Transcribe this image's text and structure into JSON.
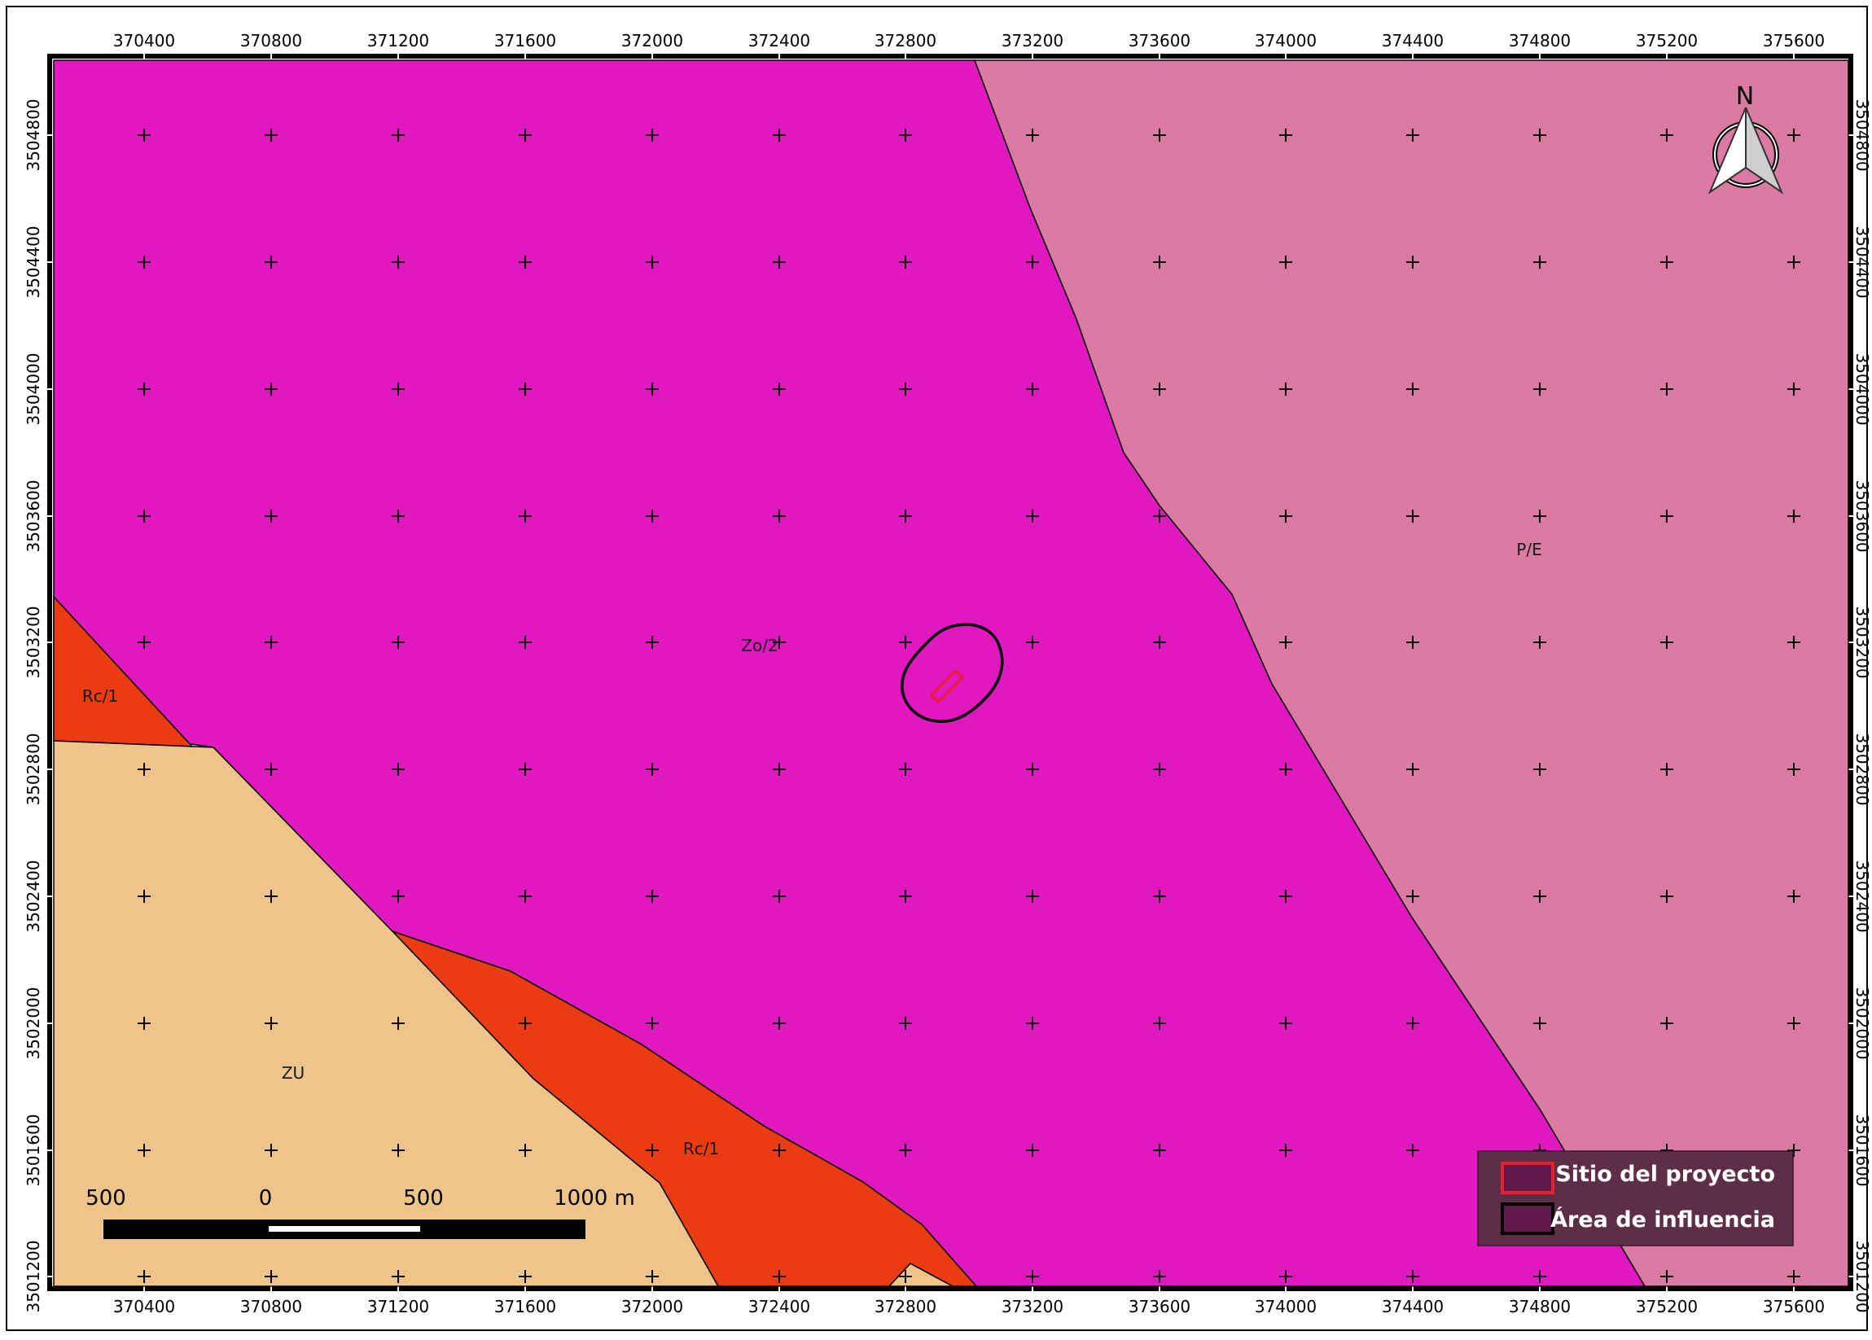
{
  "map": {
    "zone_labels": {
      "zo2": "Zo/2",
      "pe": "P/E",
      "rc1_west": "Rc/1",
      "rc1_south": "Rc/1",
      "zu": "ZU"
    },
    "grid_x_labels": [
      "370400",
      "370800",
      "371200",
      "371600",
      "372000",
      "372400",
      "372800",
      "373200",
      "373600",
      "374000",
      "374400",
      "374800",
      "375200",
      "375600"
    ],
    "grid_y_labels": [
      "3504800",
      "3504400",
      "3504000",
      "3503600",
      "3503200",
      "3502800",
      "3502400",
      "3502000",
      "3501600",
      "3501200"
    ],
    "north_arrow_label": "N",
    "scale_bar": {
      "labels": [
        "500",
        "0",
        "500",
        "1000 m"
      ]
    },
    "legend": {
      "items": [
        {
          "label": "Sitio del proyecto"
        },
        {
          "label": "Área de influencia"
        }
      ]
    },
    "colors": {
      "zo2": "#e018c0",
      "pe": "#db7aa2",
      "rc1": "#ea3b12",
      "zu": "#eec48a",
      "project_outline": "#e8202c",
      "influence_outline": "#000000",
      "legend_bg": "#5e2d48",
      "legend_swatch": "#621a4c"
    }
  }
}
